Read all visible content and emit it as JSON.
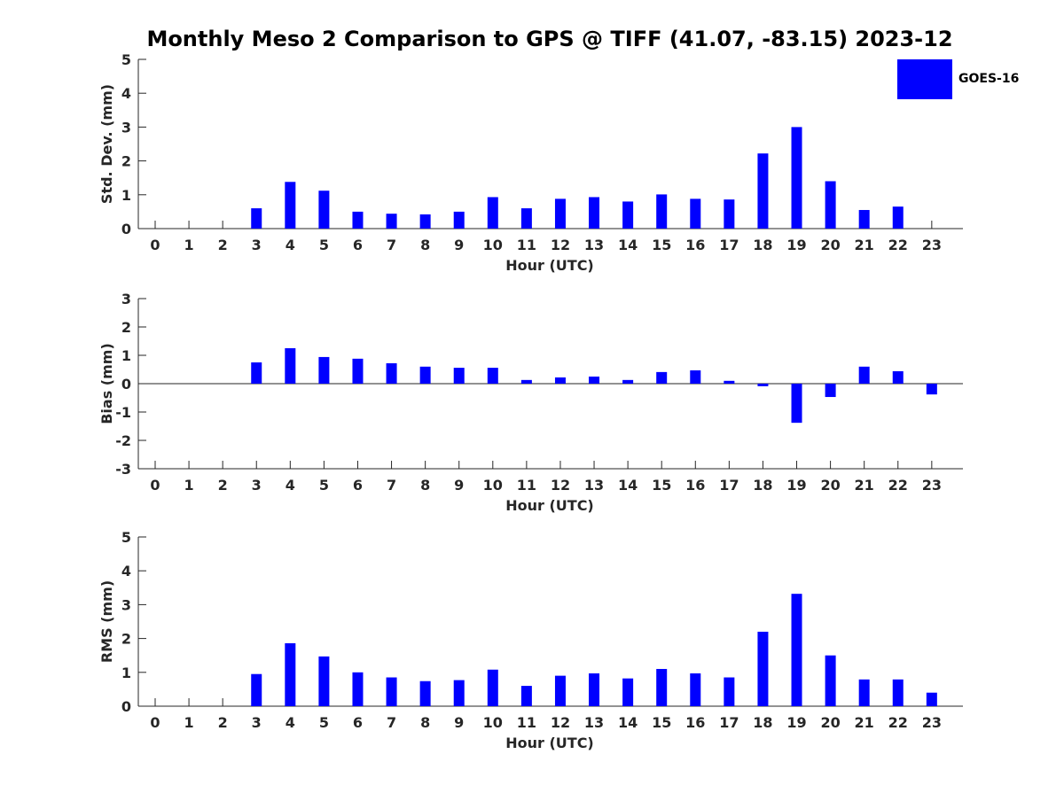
{
  "title": "Monthly Meso 2 Comparison to GPS @ TIFF (41.07, -83.15) 2023-12",
  "legend": {
    "label": "GOES-16",
    "color": "#0000ff"
  },
  "chart_data": [
    {
      "type": "bar",
      "xlabel": "Hour (UTC)",
      "ylabel": "Std. Dev. (mm)",
      "categories": [
        "0",
        "1",
        "2",
        "3",
        "4",
        "5",
        "6",
        "7",
        "8",
        "9",
        "10",
        "11",
        "12",
        "13",
        "14",
        "15",
        "16",
        "17",
        "18",
        "19",
        "20",
        "21",
        "22",
        "23"
      ],
      "ylim": [
        0,
        5
      ],
      "yticks": [
        0,
        1,
        2,
        3,
        4,
        5
      ],
      "series": [
        {
          "name": "GOES-16",
          "color": "#0000ff",
          "values": [
            null,
            null,
            null,
            0.6,
            1.38,
            1.12,
            0.5,
            0.44,
            0.42,
            0.5,
            0.93,
            0.6,
            0.88,
            0.93,
            0.8,
            1.01,
            0.88,
            0.86,
            2.22,
            3.0,
            1.4,
            0.55,
            0.65,
            null
          ]
        }
      ]
    },
    {
      "type": "bar",
      "xlabel": "Hour (UTC)",
      "ylabel": "Bias (mm)",
      "categories": [
        "0",
        "1",
        "2",
        "3",
        "4",
        "5",
        "6",
        "7",
        "8",
        "9",
        "10",
        "11",
        "12",
        "13",
        "14",
        "15",
        "16",
        "17",
        "18",
        "19",
        "20",
        "21",
        "22",
        "23"
      ],
      "ylim": [
        -3,
        3
      ],
      "yticks": [
        -3,
        -2,
        -1,
        0,
        1,
        2,
        3
      ],
      "series": [
        {
          "name": "GOES-16",
          "color": "#0000ff",
          "values": [
            null,
            null,
            null,
            0.75,
            1.25,
            0.94,
            0.88,
            0.72,
            0.6,
            0.56,
            0.56,
            0.13,
            0.22,
            0.25,
            0.13,
            0.41,
            0.47,
            0.1,
            -0.09,
            -1.38,
            -0.47,
            0.6,
            0.44,
            -0.38
          ]
        }
      ]
    },
    {
      "type": "bar",
      "xlabel": "Hour (UTC)",
      "ylabel": "RMS (mm)",
      "categories": [
        "0",
        "1",
        "2",
        "3",
        "4",
        "5",
        "6",
        "7",
        "8",
        "9",
        "10",
        "11",
        "12",
        "13",
        "14",
        "15",
        "16",
        "17",
        "18",
        "19",
        "20",
        "21",
        "22",
        "23"
      ],
      "ylim": [
        0,
        5
      ],
      "yticks": [
        0,
        1,
        2,
        3,
        4,
        5
      ],
      "series": [
        {
          "name": "GOES-16",
          "color": "#0000ff",
          "values": [
            null,
            null,
            null,
            0.95,
            1.86,
            1.47,
            1.0,
            0.85,
            0.74,
            0.77,
            1.08,
            0.6,
            0.9,
            0.97,
            0.82,
            1.1,
            0.97,
            0.85,
            2.2,
            3.32,
            1.5,
            0.79,
            0.79,
            0.4
          ]
        }
      ]
    }
  ]
}
